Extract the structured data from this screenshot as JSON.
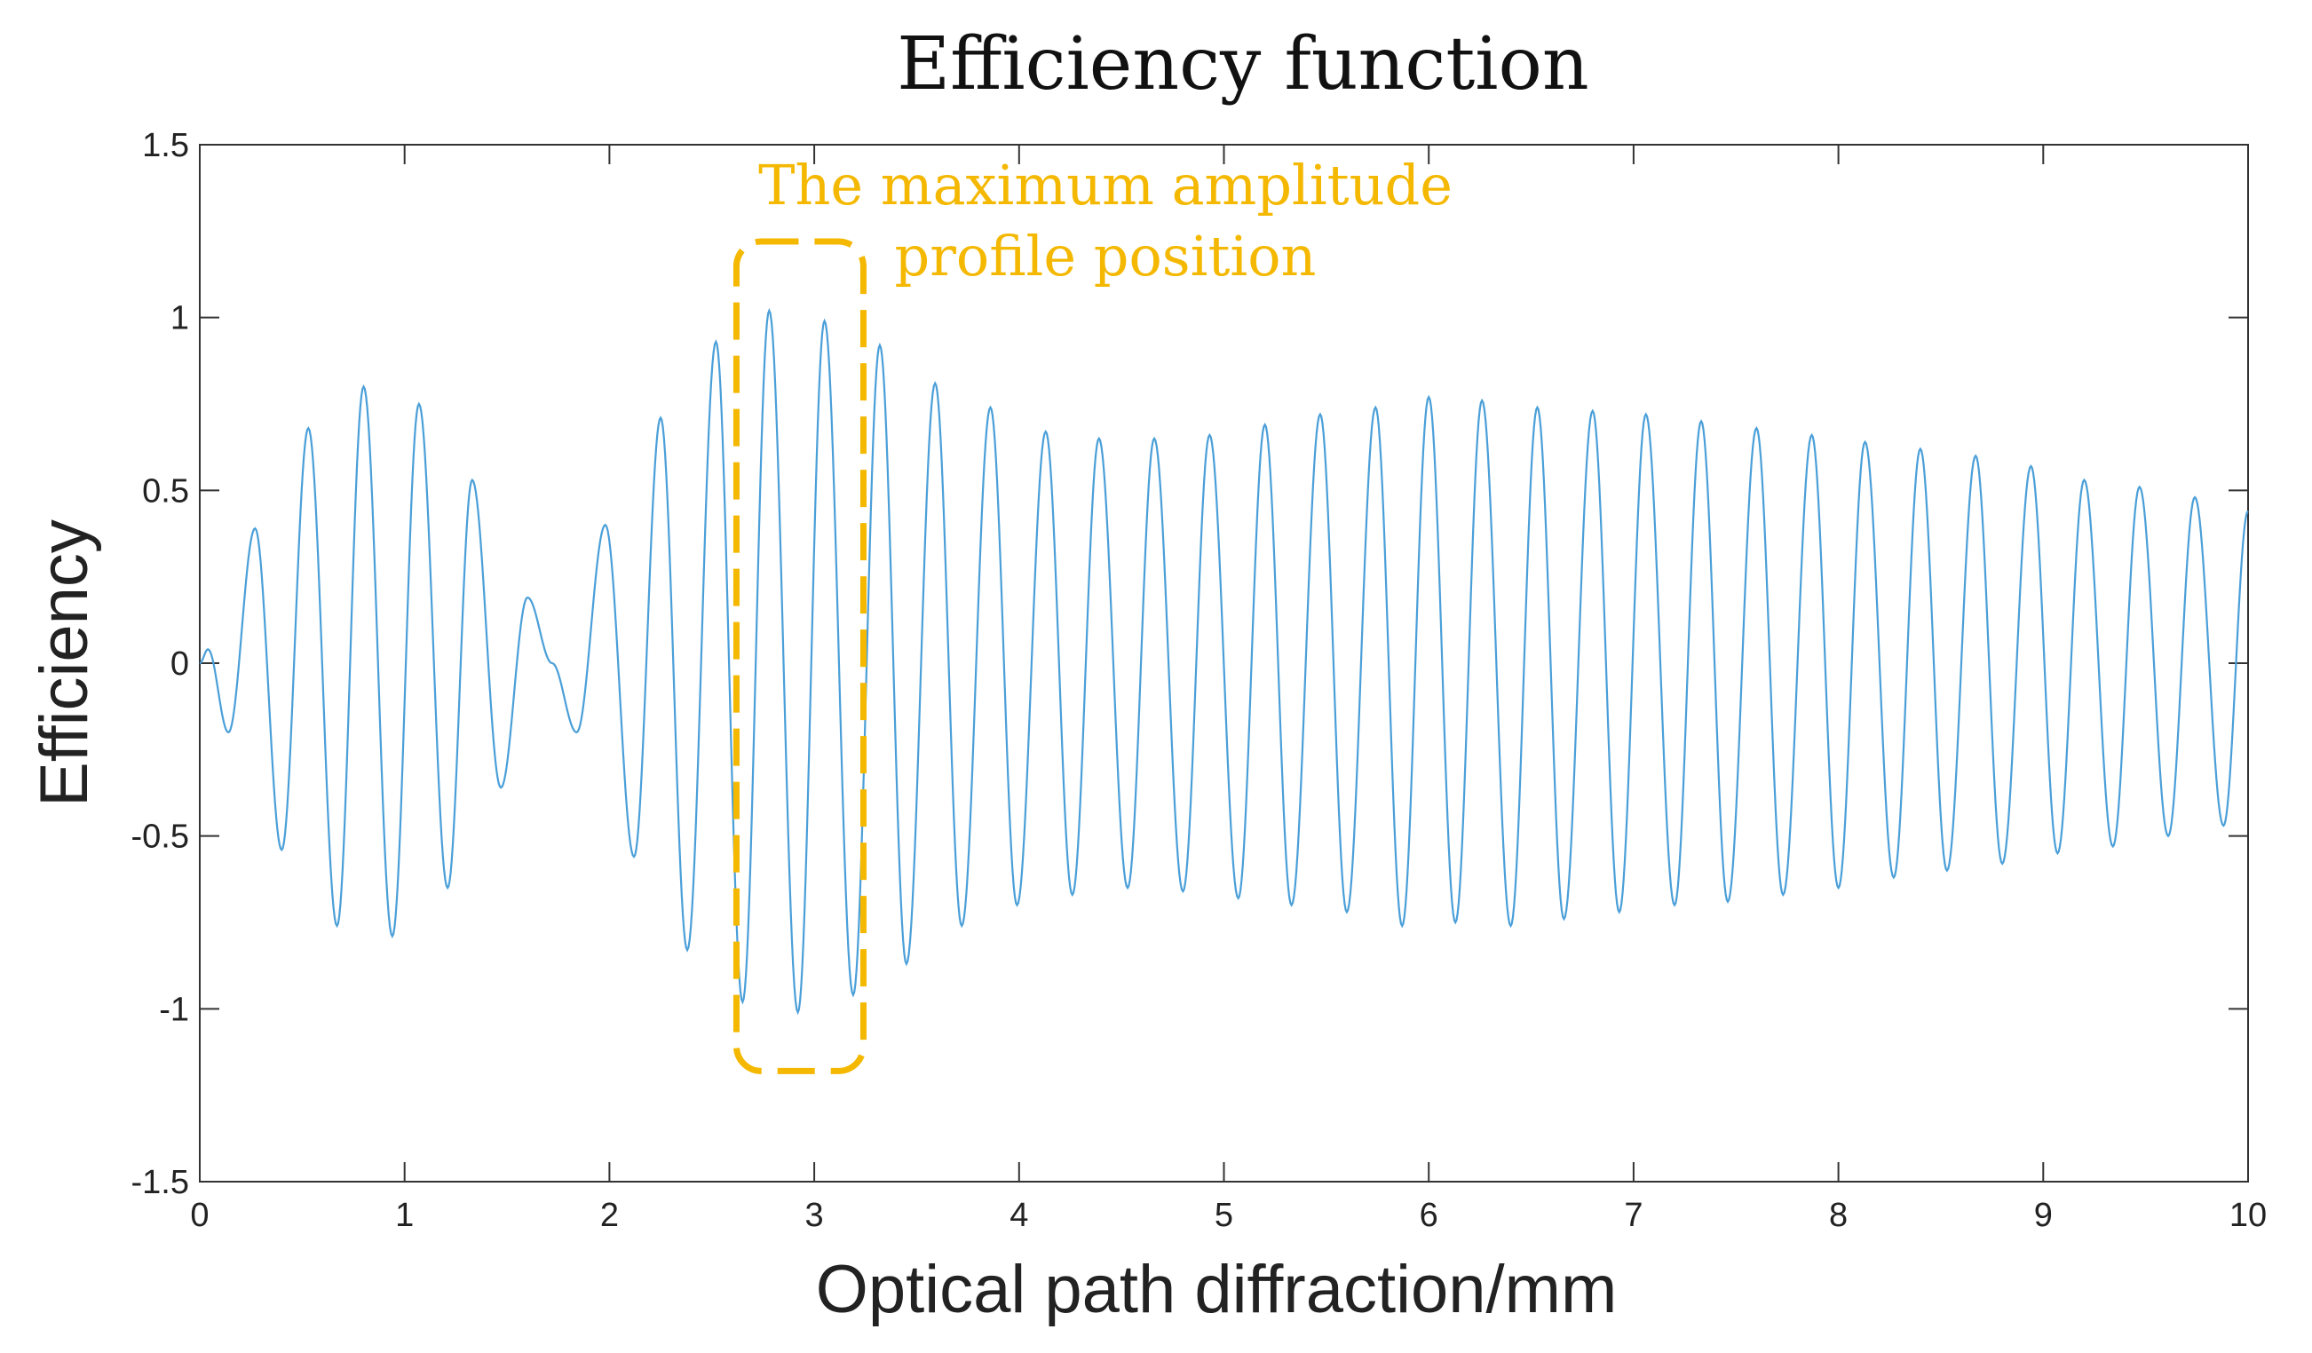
{
  "chart_data": {
    "type": "line",
    "title": "Efficiency function",
    "xlabel": "Optical path diffraction/mm",
    "ylabel": "Efficiency",
    "xlim": [
      0,
      10
    ],
    "ylim": [
      -1.5,
      1.5
    ],
    "xticks": [
      "0",
      "1",
      "2",
      "3",
      "4",
      "5",
      "6",
      "7",
      "8",
      "9",
      "10"
    ],
    "yticks": [
      "-1.5",
      "-1",
      "-0.5",
      "0",
      "0.5",
      "1",
      "1.5"
    ],
    "grid": false,
    "series": [
      {
        "name": "Efficiency",
        "color": "#4a9fd8",
        "extrema": [
          [
            0.0,
            0.0
          ],
          [
            0.04,
            0.04
          ],
          [
            0.14,
            -0.2
          ],
          [
            0.27,
            0.39
          ],
          [
            0.4,
            -0.54
          ],
          [
            0.53,
            0.68
          ],
          [
            0.67,
            -0.76
          ],
          [
            0.8,
            0.8
          ],
          [
            0.94,
            -0.79
          ],
          [
            1.07,
            0.75
          ],
          [
            1.21,
            -0.65
          ],
          [
            1.33,
            0.53
          ],
          [
            1.47,
            -0.36
          ],
          [
            1.6,
            0.19
          ],
          [
            1.72,
            0.0
          ],
          [
            1.84,
            -0.2
          ],
          [
            1.98,
            0.4
          ],
          [
            2.12,
            -0.56
          ],
          [
            2.25,
            0.71
          ],
          [
            2.38,
            -0.83
          ],
          [
            2.52,
            0.93
          ],
          [
            2.65,
            -0.98
          ],
          [
            2.78,
            1.02
          ],
          [
            2.92,
            -1.01
          ],
          [
            3.05,
            0.99
          ],
          [
            3.19,
            -0.96
          ],
          [
            3.32,
            0.92
          ],
          [
            3.45,
            -0.87
          ],
          [
            3.59,
            0.81
          ],
          [
            3.72,
            -0.76
          ],
          [
            3.86,
            0.74
          ],
          [
            3.99,
            -0.7
          ],
          [
            4.13,
            0.67
          ],
          [
            4.26,
            -0.67
          ],
          [
            4.39,
            0.65
          ],
          [
            4.53,
            -0.65
          ],
          [
            4.66,
            0.65
          ],
          [
            4.8,
            -0.66
          ],
          [
            4.93,
            0.66
          ],
          [
            5.07,
            -0.68
          ],
          [
            5.2,
            0.69
          ],
          [
            5.33,
            -0.7
          ],
          [
            5.47,
            0.72
          ],
          [
            5.6,
            -0.72
          ],
          [
            5.74,
            0.74
          ],
          [
            5.87,
            -0.76
          ],
          [
            6.0,
            0.77
          ],
          [
            6.13,
            -0.75
          ],
          [
            6.26,
            0.76
          ],
          [
            6.4,
            -0.76
          ],
          [
            6.53,
            0.74
          ],
          [
            6.66,
            -0.74
          ],
          [
            6.8,
            0.73
          ],
          [
            6.93,
            -0.72
          ],
          [
            7.06,
            0.72
          ],
          [
            7.2,
            -0.7
          ],
          [
            7.33,
            0.7
          ],
          [
            7.46,
            -0.69
          ],
          [
            7.6,
            0.68
          ],
          [
            7.73,
            -0.67
          ],
          [
            7.87,
            0.66
          ],
          [
            8.0,
            -0.65
          ],
          [
            8.13,
            0.64
          ],
          [
            8.27,
            -0.62
          ],
          [
            8.4,
            0.62
          ],
          [
            8.53,
            -0.6
          ],
          [
            8.67,
            0.6
          ],
          [
            8.8,
            -0.58
          ],
          [
            8.94,
            0.57
          ],
          [
            9.07,
            -0.55
          ],
          [
            9.2,
            0.53
          ],
          [
            9.34,
            -0.53
          ],
          [
            9.47,
            0.51
          ],
          [
            9.61,
            -0.5
          ],
          [
            9.74,
            0.48
          ],
          [
            9.88,
            -0.47
          ],
          [
            10.0,
            0.44
          ]
        ]
      }
    ],
    "annotations": [
      {
        "text_lines": [
          "The maximum amplitude",
          "profile position"
        ],
        "color": "#f4b800",
        "box_data_range": {
          "x": [
            2.62,
            3.24
          ],
          "y": [
            -1.18,
            1.22
          ]
        }
      }
    ]
  }
}
